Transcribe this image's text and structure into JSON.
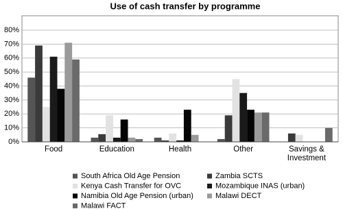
{
  "chart_data": {
    "type": "bar",
    "title": "Use of cash transfer by programme",
    "categories": [
      "Food",
      "Education",
      "Health",
      "Other",
      "Savings & Investment"
    ],
    "series": [
      {
        "name": "South Africa Old Age Pension",
        "color": "#555555",
        "values": [
          46,
          3,
          3,
          2,
          0
        ]
      },
      {
        "name": "Zambia SCTS",
        "color": "#3a3a3a",
        "values": [
          69,
          5.5,
          1,
          19,
          6
        ]
      },
      {
        "name": "Kenya Cash Transfer for OVC",
        "color": "#e2e2e2",
        "values": [
          25,
          19,
          6,
          45,
          5
        ]
      },
      {
        "name": "Mozambique INAS (urban)",
        "color": "#1a1a1a",
        "values": [
          61,
          3,
          1,
          35,
          0
        ]
      },
      {
        "name": "Namibia Old Age Pension (urban)",
        "color": "#050505",
        "values": [
          38,
          16,
          23,
          23,
          0
        ]
      },
      {
        "name": "Malawi DECT",
        "color": "#9a9a9a",
        "values": [
          71,
          3,
          5,
          21,
          0
        ]
      },
      {
        "name": "Malawi FACT",
        "color": "#6a6a6a",
        "values": [
          59,
          2,
          0,
          21,
          10
        ]
      }
    ],
    "ylim": [
      0,
      80
    ],
    "yticks": [
      {
        "value": 0,
        "label": "0%"
      },
      {
        "value": 10,
        "label": "10%"
      },
      {
        "value": 20,
        "label": "20%"
      },
      {
        "value": 30,
        "label": "30%"
      },
      {
        "value": 40,
        "label": "40%"
      },
      {
        "value": 50,
        "label": "50%"
      },
      {
        "value": 60,
        "label": "60%"
      },
      {
        "value": 70,
        "label": "70%"
      },
      {
        "value": 80,
        "label": "80%"
      }
    ],
    "grid": true
  }
}
